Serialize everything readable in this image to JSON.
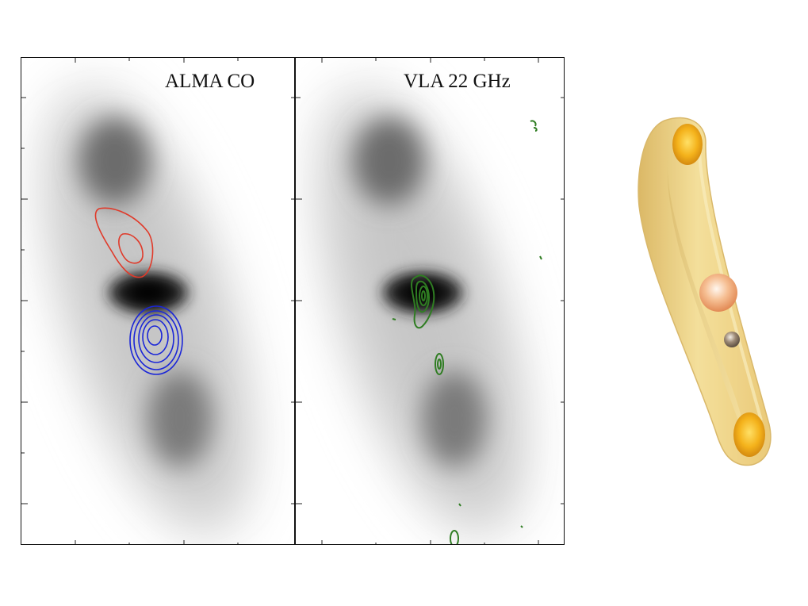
{
  "panels": [
    {
      "label": "ALMA CO",
      "contours": [
        {
          "color": "#e03a2a",
          "levels": 2
        },
        {
          "color": "#1a25d8",
          "levels": 5
        }
      ]
    },
    {
      "label": "VLA 22 GHz",
      "contours": [
        {
          "color": "#2f7d22",
          "levels": 4
        }
      ]
    }
  ],
  "schematic": {
    "torus_color": "#f0d67e",
    "hotspot_color": "#f2b51e",
    "core_color": "#f3b58a",
    "companion_color": "#8b7b6a"
  }
}
